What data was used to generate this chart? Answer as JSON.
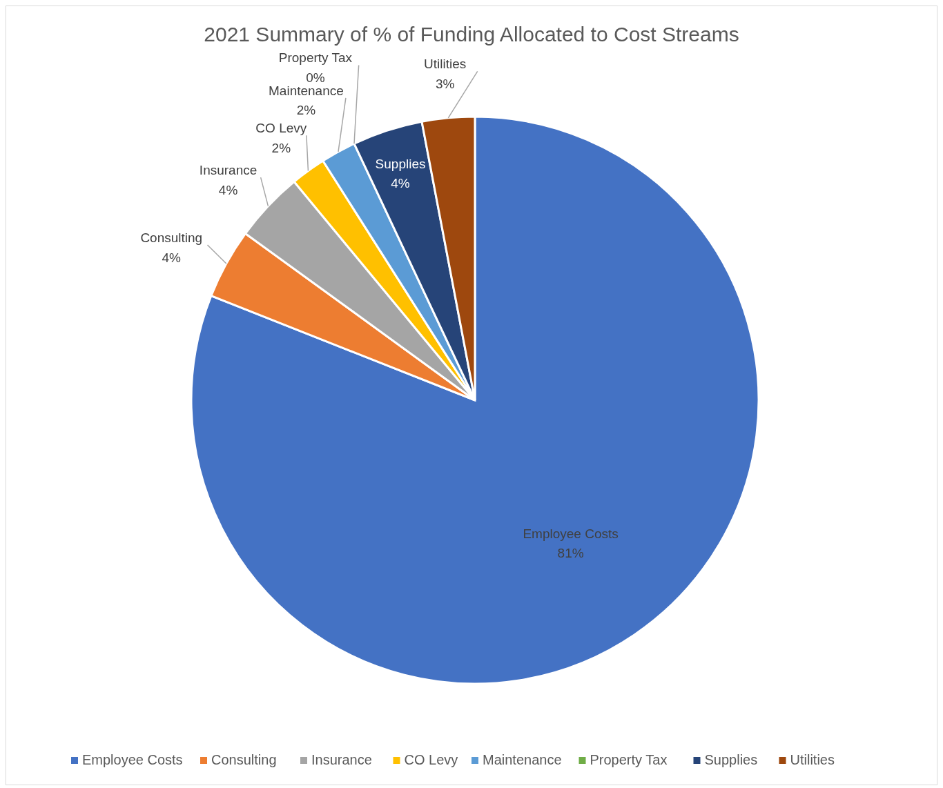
{
  "chart_data": {
    "type": "pie",
    "title": "2021 Summary of % of Funding Allocated to Cost Streams",
    "categories": [
      "Employee Costs",
      "Consulting",
      "Insurance",
      "CO Levy",
      "Maintenance",
      "Property Tax",
      "Supplies",
      "Utilities"
    ],
    "values": [
      81,
      4,
      4,
      2,
      2,
      0,
      4,
      3
    ],
    "colors": [
      "#4472c4",
      "#ed7d31",
      "#a5a5a5",
      "#ffc000",
      "#5b9bd5",
      "#70ad47",
      "#264478",
      "#9e480e"
    ],
    "value_labels": [
      "81%",
      "4%",
      "4%",
      "2%",
      "2%",
      "0%",
      "4%",
      "3%"
    ],
    "legend": "bottom"
  }
}
